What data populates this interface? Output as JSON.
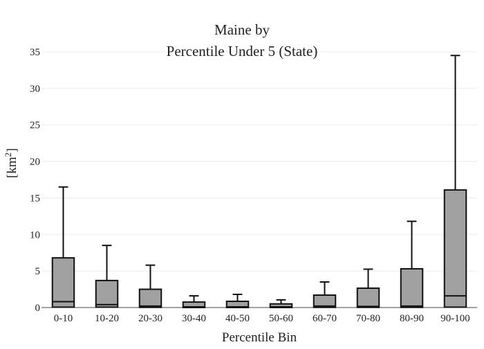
{
  "chart_data": {
    "type": "box",
    "title_line1": "Maine  by",
    "title_line2": "Percentile Under 5 (State)",
    "xlabel": "Percentile Bin",
    "ylabel_base": "[km",
    "ylabel_sup": "2",
    "ylabel_end": "]",
    "ylim": [
      0,
      35
    ],
    "yticks": [
      0,
      5,
      10,
      15,
      20,
      25,
      30,
      35
    ],
    "grid": true,
    "legend": "none",
    "box_color": "#a0a0a0",
    "line_color": "#111111",
    "categories": [
      "0-10",
      "10-20",
      "20-30",
      "30-40",
      "40-50",
      "50-60",
      "60-70",
      "70-80",
      "80-90",
      "90-100"
    ],
    "boxes": [
      {
        "min": 0,
        "q1": 0.05,
        "median": 0.8,
        "q3": 6.8,
        "max": 16.5
      },
      {
        "min": 0,
        "q1": 0.05,
        "median": 0.4,
        "q3": 3.7,
        "max": 8.5
      },
      {
        "min": 0,
        "q1": 0.02,
        "median": 0.2,
        "q3": 2.5,
        "max": 5.8
      },
      {
        "min": 0,
        "q1": 0.0,
        "median": 0.1,
        "q3": 0.75,
        "max": 1.6
      },
      {
        "min": 0,
        "q1": 0.0,
        "median": 0.1,
        "q3": 0.85,
        "max": 1.8
      },
      {
        "min": 0,
        "q1": 0.0,
        "median": 0.1,
        "q3": 0.5,
        "max": 1.05
      },
      {
        "min": 0,
        "q1": 0.02,
        "median": 0.2,
        "q3": 1.7,
        "max": 3.5
      },
      {
        "min": 0,
        "q1": 0.02,
        "median": 0.15,
        "q3": 2.65,
        "max": 5.25
      },
      {
        "min": 0,
        "q1": 0.02,
        "median": 0.2,
        "q3": 5.3,
        "max": 11.8
      },
      {
        "min": 0,
        "q1": 0.05,
        "median": 1.6,
        "q3": 16.1,
        "max": 34.5
      }
    ]
  }
}
